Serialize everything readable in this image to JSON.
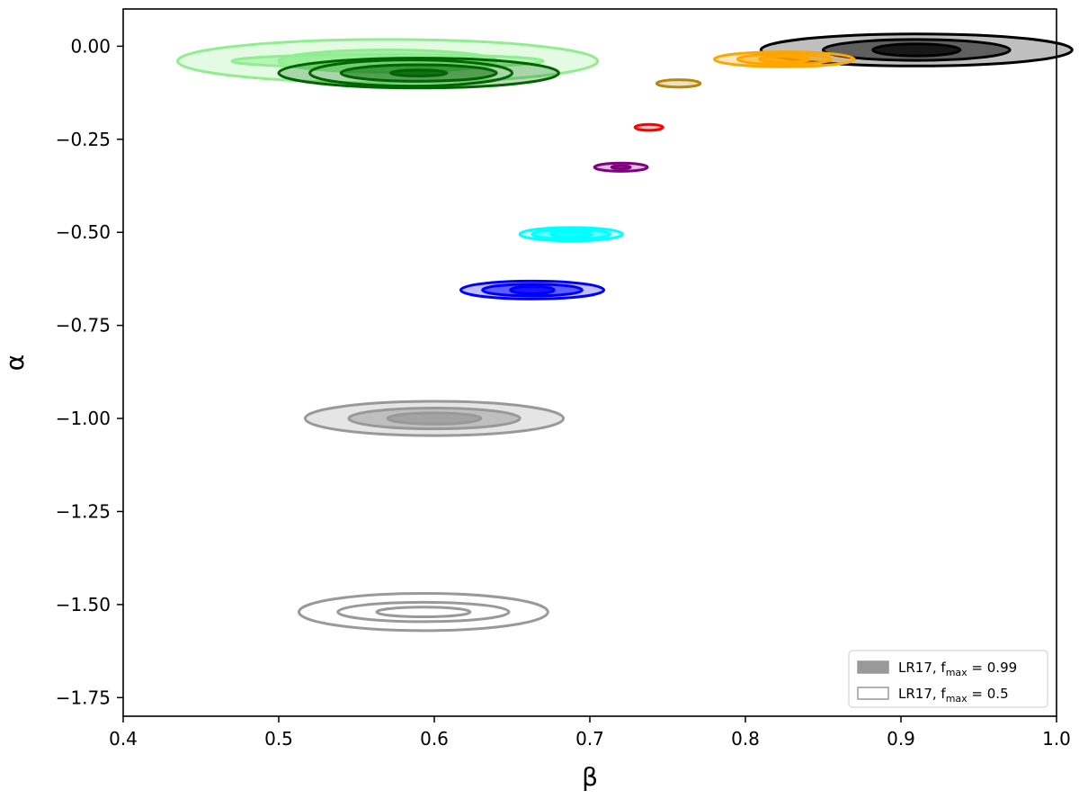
{
  "chart_data": {
    "type": "contour",
    "xlabel": "β",
    "ylabel": "α",
    "xlim": [
      0.4,
      1.0
    ],
    "ylim": [
      -1.8,
      0.1
    ],
    "xticks": [
      "0.4",
      "0.5",
      "0.6",
      "0.7",
      "0.8",
      "0.9",
      "1.0"
    ],
    "yticks": [
      "0.00",
      "−0.25",
      "−0.50",
      "−0.75",
      "−1.00",
      "−1.25",
      "−1.50",
      "−1.75"
    ],
    "xtick_values": [
      0.4,
      0.5,
      0.6,
      0.7,
      0.8,
      0.9,
      1.0
    ],
    "ytick_values": [
      0.0,
      -0.25,
      -0.5,
      -0.75,
      -1.0,
      -1.25,
      -1.5,
      -1.75
    ],
    "legend": {
      "placement": "lower-right",
      "entries": [
        {
          "label": "LR17,",
          "param_main": "f",
          "param_sub": "max",
          "param_value": "= 0.99",
          "style": "filled",
          "color": "#999999"
        },
        {
          "label": "LR17,",
          "param_main": "f",
          "param_sub": "max",
          "param_value": "= 0.5",
          "style": "outline",
          "color": "#999999"
        }
      ]
    },
    "series": [
      {
        "color": "#90ee90",
        "filled": true,
        "center": [
          0.57,
          -0.04
        ],
        "levels": [
          [
            0.1,
            0.018
          ],
          [
            0.07,
            0.03
          ],
          [
            0.135,
            0.058
          ]
        ]
      },
      {
        "color": "#006400",
        "filled": true,
        "center": [
          0.59,
          -0.072
        ],
        "levels": [
          [
            0.018,
            0.008
          ],
          [
            0.05,
            0.022
          ],
          [
            0.09,
            0.04
          ]
        ]
      },
      {
        "color": "#006400",
        "filled": false,
        "center": [
          0.585,
          -0.072
        ],
        "levels": [
          [
            0.065,
            0.035
          ]
        ]
      },
      {
        "color": "#000000",
        "filled": true,
        "center": [
          0.91,
          -0.01
        ],
        "levels": [
          [
            0.028,
            0.016
          ],
          [
            0.06,
            0.028
          ],
          [
            0.1,
            0.043
          ]
        ]
      },
      {
        "color": "#ffa500",
        "filled": true,
        "center": [
          0.825,
          -0.035
        ],
        "levels": [
          [
            0.016,
            0.008
          ],
          [
            0.03,
            0.014
          ],
          [
            0.045,
            0.02
          ]
        ]
      },
      {
        "color": "#b8860b",
        "filled": true,
        "center": [
          0.757,
          -0.1
        ],
        "levels": [
          [
            0.014,
            0.01
          ]
        ]
      },
      {
        "color": "#ff0000",
        "filled": true,
        "center": [
          0.738,
          -0.218
        ],
        "levels": [
          [
            0.009,
            0.008
          ]
        ]
      },
      {
        "color": "#800080",
        "filled": true,
        "center": [
          0.72,
          -0.325
        ],
        "levels": [
          [
            0.006,
            0.004
          ],
          [
            0.017,
            0.011
          ]
        ]
      },
      {
        "color": "#00ffff",
        "filled": true,
        "center": [
          0.688,
          -0.505
        ],
        "levels": [
          [
            0.013,
            0.008
          ],
          [
            0.025,
            0.013
          ],
          [
            0.033,
            0.018
          ]
        ]
      },
      {
        "color": "#0000ff",
        "filled": true,
        "center": [
          0.663,
          -0.655
        ],
        "levels": [
          [
            0.014,
            0.01
          ],
          [
            0.032,
            0.016
          ],
          [
            0.046,
            0.024
          ]
        ]
      },
      {
        "color": "#999999",
        "filled": true,
        "center": [
          0.6,
          -1.0
        ],
        "levels": [
          [
            0.03,
            0.015
          ],
          [
            0.055,
            0.028
          ],
          [
            0.083,
            0.046
          ]
        ]
      },
      {
        "color": "#999999",
        "filled": false,
        "center": [
          0.593,
          -1.52
        ],
        "levels": [
          [
            0.03,
            0.013
          ],
          [
            0.055,
            0.026
          ],
          [
            0.08,
            0.05
          ]
        ]
      }
    ]
  }
}
